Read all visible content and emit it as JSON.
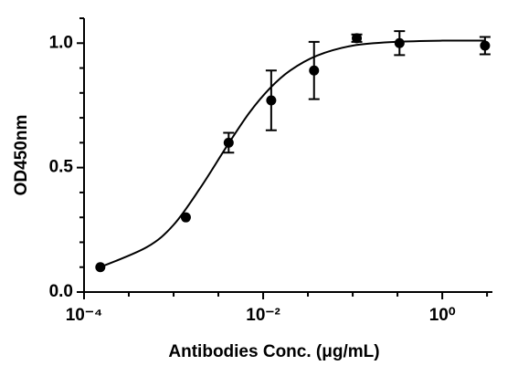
{
  "chart_data": {
    "type": "scatter",
    "x_label": "Antibodies Conc. (μg/mL)",
    "y_label": "OD450nm",
    "log_x": true,
    "xlim": [
      0.0001,
      3.63
    ],
    "xticks": [
      {
        "value": 0.0001,
        "label": "10⁻⁴"
      },
      {
        "value": 0.01,
        "label": "10⁻²"
      },
      {
        "value": 1,
        "label": "10⁰"
      }
    ],
    "xminorticks": [
      0.000316,
      0.001,
      0.00316,
      0.0316,
      0.1,
      0.316,
      3.16
    ],
    "ylim": [
      0,
      1.1
    ],
    "yticks": [
      {
        "value": 0,
        "label": "0.0"
      },
      {
        "value": 0.5,
        "label": "0.5"
      },
      {
        "value": 1,
        "label": "1.0"
      }
    ],
    "yminorticks": [
      0.1,
      0.2,
      0.3,
      0.4,
      0.6,
      0.7,
      0.8,
      0.9,
      1.1
    ],
    "color": "#000000",
    "x": [
      0.000152,
      0.00137,
      0.00412,
      0.0123,
      0.037,
      0.111,
      0.333,
      3
    ],
    "values": [
      0.1,
      0.3,
      0.6,
      0.77,
      0.89,
      1.02,
      1.0,
      0.99
    ],
    "errors": [
      0,
      0,
      0.04,
      0.12,
      0.115,
      0.015,
      0.048,
      0.035
    ],
    "curve": {
      "x": [
        0.000152,
        0.0005,
        0.001,
        0.002,
        0.004,
        0.007,
        0.012,
        0.02,
        0.04,
        0.1,
        0.3,
        1,
        3
      ],
      "values": [
        0.1,
        0.18,
        0.27,
        0.42,
        0.59,
        0.72,
        0.82,
        0.89,
        0.95,
        0.99,
        1.005,
        1.01,
        1.01
      ]
    }
  }
}
